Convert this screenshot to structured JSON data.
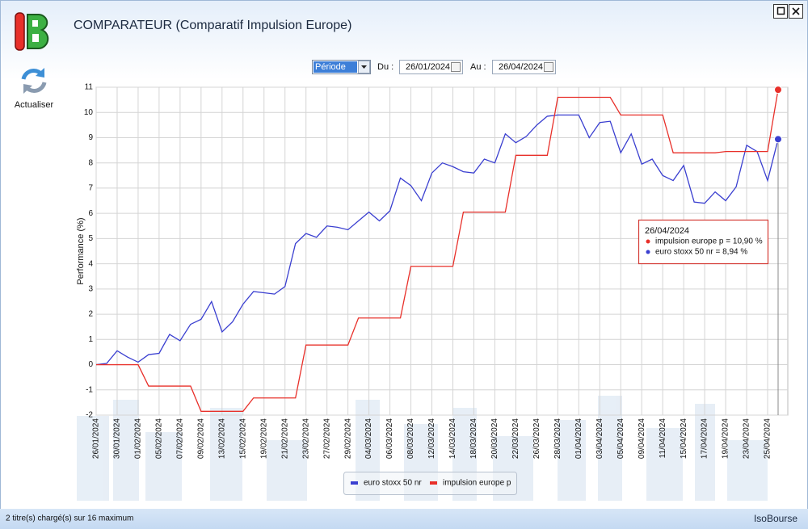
{
  "window": {
    "title": "COMPARATEUR (Comparatif Impulsion Europe)",
    "refresh_label": "Actualiser",
    "period_select": "Période",
    "from_label": "Du :",
    "from_date": "26/01/2024",
    "to_label": "Au :",
    "to_date": "26/04/2024"
  },
  "status_bar": {
    "message": "2 titre(s) chargé(s) sur 16 maximum",
    "brand": "IsoBourse"
  },
  "chart_data": {
    "type": "line",
    "ylabel": "Performance (%)",
    "categories": [
      "26/01/2024",
      null,
      "30/01/2024",
      null,
      "01/02/2024",
      null,
      "05/02/2024",
      null,
      "07/02/2024",
      null,
      "09/02/2024",
      null,
      "13/02/2024",
      null,
      "15/02/2024",
      null,
      "19/02/2024",
      null,
      "21/02/2024",
      null,
      "23/02/2024",
      null,
      "27/02/2024",
      null,
      "29/02/2024",
      null,
      "04/03/2024",
      null,
      "06/03/2024",
      null,
      "08/03/2024",
      null,
      "12/03/2024",
      null,
      "14/03/2024",
      null,
      "18/03/2024",
      null,
      "20/03/2024",
      null,
      "22/03/2024",
      null,
      "26/03/2024",
      null,
      "28/03/2024",
      null,
      "01/04/2024",
      null,
      "03/04/2024",
      null,
      "05/04/2024",
      null,
      "09/04/2024",
      null,
      "11/04/2024",
      null,
      "15/04/2024",
      null,
      "17/04/2024",
      null,
      "19/04/2024",
      null,
      "23/04/2024",
      null,
      "25/04/2024",
      null
    ],
    "series": [
      {
        "name": "euro stoxx 50 nr",
        "color": "#3a3fd0",
        "values": [
          0,
          0.05,
          0.55,
          0.3,
          0.1,
          0.4,
          0.45,
          1.2,
          0.95,
          1.6,
          1.8,
          2.5,
          1.3,
          1.7,
          2.4,
          2.9,
          2.85,
          2.8,
          3.1,
          4.8,
          5.2,
          5.05,
          5.5,
          5.45,
          5.35,
          5.7,
          6.05,
          5.7,
          6.1,
          7.4,
          7.1,
          6.5,
          7.6,
          8.0,
          7.85,
          7.65,
          7.6,
          8.15,
          8.0,
          9.15,
          8.8,
          9.05,
          9.5,
          9.85,
          9.9,
          9.9,
          9.9,
          9.0,
          9.6,
          9.65,
          8.4,
          9.15,
          7.95,
          8.15,
          7.5,
          7.3,
          7.9,
          6.45,
          6.4,
          6.85,
          6.5,
          7.05,
          8.7,
          8.45,
          7.3,
          8.94
        ]
      },
      {
        "name": "impulsion europe p",
        "color": "#e8302a",
        "values": [
          0,
          0,
          0,
          0,
          0,
          -0.85,
          -0.85,
          -0.85,
          -0.85,
          -0.85,
          -1.85,
          -1.85,
          -1.85,
          -1.85,
          -1.85,
          -1.32,
          -1.32,
          -1.32,
          -1.32,
          -1.32,
          0.78,
          0.78,
          0.78,
          0.78,
          0.78,
          1.85,
          1.85,
          1.85,
          1.85,
          1.85,
          3.9,
          3.9,
          3.9,
          3.9,
          3.9,
          6.05,
          6.05,
          6.05,
          6.05,
          6.05,
          8.3,
          8.3,
          8.3,
          8.3,
          10.6,
          10.6,
          10.6,
          10.6,
          10.6,
          10.6,
          9.9,
          9.9,
          9.9,
          9.9,
          9.9,
          8.4,
          8.4,
          8.4,
          8.4,
          8.4,
          8.45,
          8.45,
          8.45,
          8.45,
          8.45,
          10.9
        ]
      }
    ],
    "ylim": [
      -2,
      11
    ],
    "yticks": [
      -2,
      -1,
      0,
      1,
      2,
      3,
      4,
      5,
      6,
      7,
      8,
      9,
      10,
      11
    ],
    "grid": true,
    "legend": "bottom",
    "tooltip": {
      "date": "26/04/2024",
      "lines": [
        "impulsion europe p = 10,90 %",
        "euro stoxx 50 nr = 8,94 %"
      ]
    }
  }
}
